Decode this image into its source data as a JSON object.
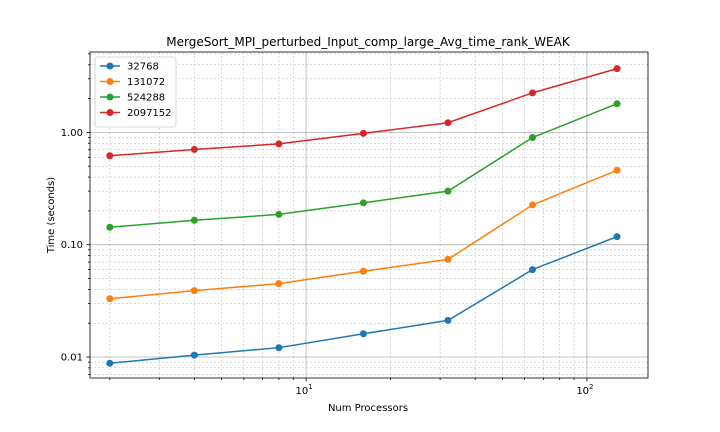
{
  "chart_data": {
    "type": "line",
    "title": "MergeSort_MPI_perturbed_Input_comp_large_Avg_time_rank_WEAK",
    "xlabel": "Num Processors",
    "ylabel": "Time (seconds)",
    "x_scale": "log",
    "y_scale": "log",
    "xlim": [
      1.7,
      165
    ],
    "ylim": [
      0.0065,
      5.2
    ],
    "grid": true,
    "legend_position": "top-left",
    "x_ticks": [
      {
        "value": 10,
        "base": "10",
        "exp": "1"
      },
      {
        "value": 100,
        "base": "10",
        "exp": "2"
      }
    ],
    "y_ticks": [
      {
        "value": 0.01,
        "label": "0.01"
      },
      {
        "value": 0.1,
        "label": "0.10"
      },
      {
        "value": 1,
        "label": "1.00"
      }
    ],
    "x": [
      2,
      4,
      8,
      16,
      32,
      64,
      128
    ],
    "series": [
      {
        "name": "32768",
        "color": "#1f77b4",
        "values": [
          0.0088,
          0.0104,
          0.0121,
          0.0161,
          0.0212,
          0.06,
          0.118
        ]
      },
      {
        "name": "131072",
        "color": "#ff7f0e",
        "values": [
          0.033,
          0.039,
          0.045,
          0.058,
          0.074,
          0.226,
          0.46
        ]
      },
      {
        "name": "524288",
        "color": "#2ca02c",
        "values": [
          0.143,
          0.165,
          0.186,
          0.236,
          0.3,
          0.9,
          1.8
        ]
      },
      {
        "name": "2097152",
        "color": "#d62728",
        "values": [
          0.62,
          0.705,
          0.79,
          0.98,
          1.22,
          2.25,
          3.7
        ]
      }
    ]
  }
}
